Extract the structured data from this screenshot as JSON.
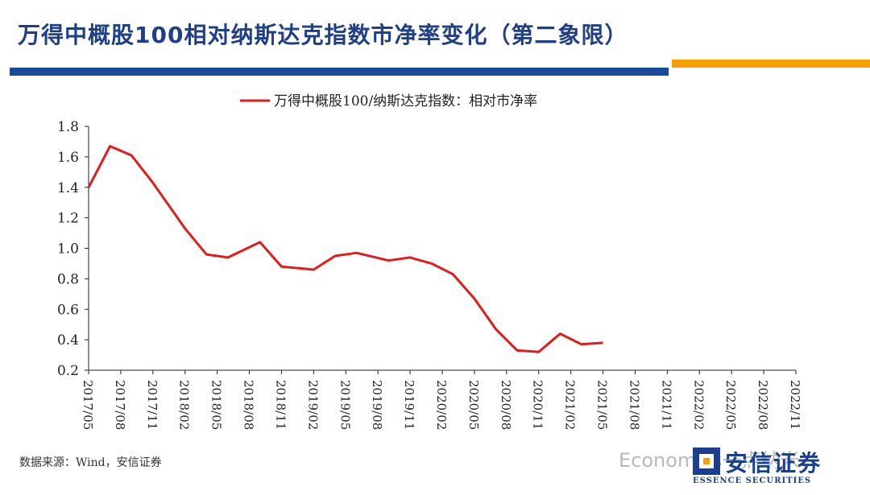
{
  "header": {
    "title": "万得中概股100相对纳斯达克指数市净率变化（第二象限）"
  },
  "chart_data": {
    "type": "line",
    "x_labels": [
      "2017/05",
      "2017/08",
      "2017/11",
      "2018/02",
      "2018/05",
      "2018/08",
      "2018/11",
      "2019/02",
      "2019/05",
      "2019/08",
      "2019/11",
      "2020/02",
      "2020/05",
      "2020/08",
      "2020/11",
      "2021/02",
      "2021/05",
      "2021/08",
      "2021/11",
      "2022/02",
      "2022/05",
      "2022/08",
      "2022/11"
    ],
    "series": [
      {
        "name": "万得中概股100/纳斯达克指数：相对市净率",
        "color": "#e21b1b",
        "points": [
          [
            "2017/05",
            1.4
          ],
          [
            "2017/07",
            1.67
          ],
          [
            "2017/09",
            1.61
          ],
          [
            "2017/11",
            1.43
          ],
          [
            "2018/02",
            1.13
          ],
          [
            "2018/04",
            0.96
          ],
          [
            "2018/06",
            0.94
          ],
          [
            "2018/09",
            1.04
          ],
          [
            "2018/11",
            0.88
          ],
          [
            "2019/02",
            0.86
          ],
          [
            "2019/04",
            0.95
          ],
          [
            "2019/06",
            0.97
          ],
          [
            "2019/09",
            0.92
          ],
          [
            "2019/11",
            0.94
          ],
          [
            "2020/01",
            0.9
          ],
          [
            "2020/03",
            0.83
          ],
          [
            "2020/05",
            0.67
          ],
          [
            "2020/07",
            0.47
          ],
          [
            "2020/09",
            0.33
          ],
          [
            "2020/11",
            0.32
          ],
          [
            "2021/01",
            0.44
          ],
          [
            "2021/03",
            0.37
          ],
          [
            "2021/05",
            0.38
          ]
        ]
      }
    ],
    "ylim": [
      0.2,
      1.8
    ],
    "yticks": [
      "0.2",
      "0.4",
      "0.6",
      "0.8",
      "1.0",
      "1.2",
      "1.4",
      "1.6",
      "1.8"
    ],
    "grid": false,
    "legend_position": "top"
  },
  "footer": {
    "source": "数据来源：Wind，安信证券",
    "watermark": "Economics一点纳米",
    "logo_cn": "安信证券",
    "logo_en": "ESSENCE SECURITIES"
  },
  "colors": {
    "title": "#1f3f86",
    "bar_blue": "#1a4b9b",
    "bar_orange": "#f5a000",
    "line": "#e21b1b"
  }
}
